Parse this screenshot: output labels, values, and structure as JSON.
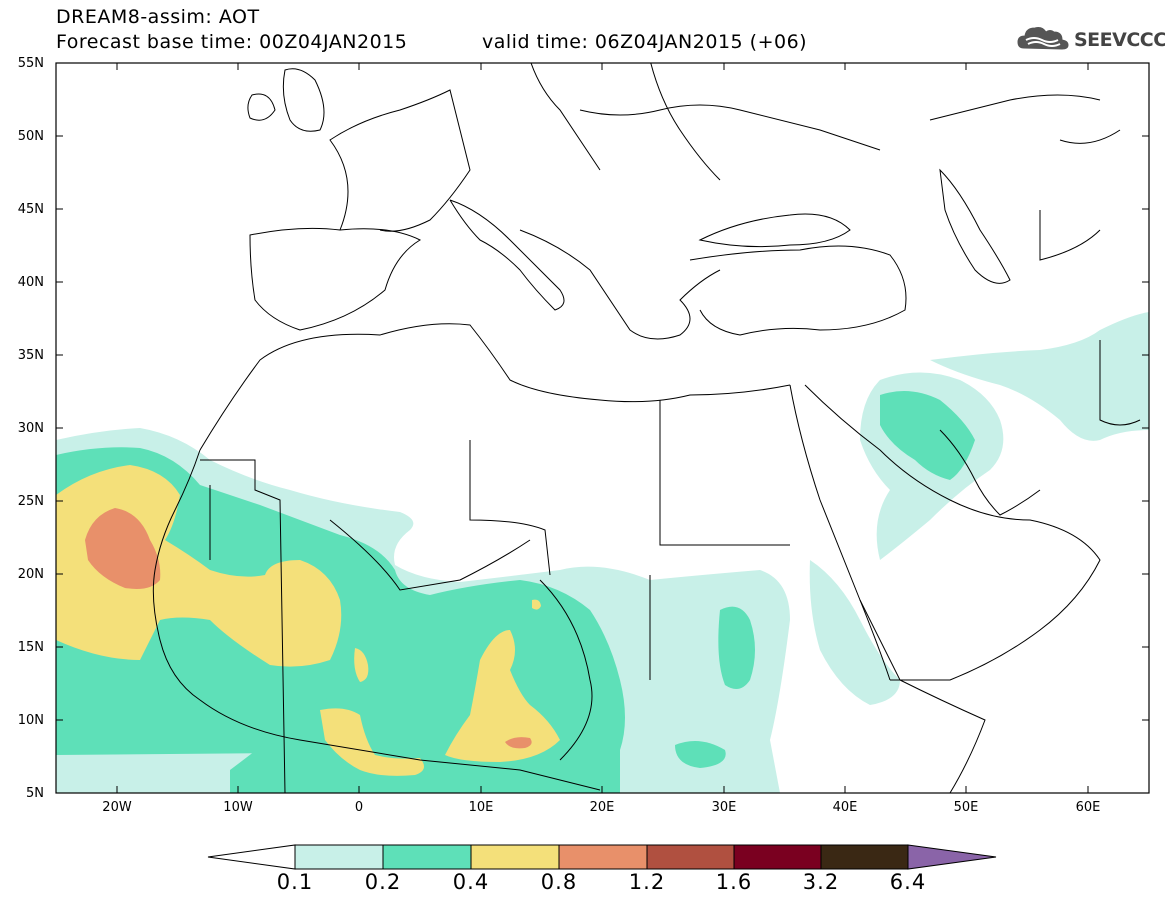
{
  "header": {
    "title": "DREAM8-assim: AOT",
    "base_time": "Forecast base time: 00Z04JAN2015",
    "valid_time": "valid time: 06Z04JAN2015 (+06)"
  },
  "logo": {
    "name": "cloud-logo-icon",
    "text": "SEEVCCC"
  },
  "map": {
    "lat_labels": [
      "55N",
      "50N",
      "45N",
      "40N",
      "35N",
      "30N",
      "25N",
      "20N",
      "15N",
      "10N",
      "5N"
    ],
    "lon_labels": [
      "20W",
      "10W",
      "0",
      "10E",
      "20E",
      "30E",
      "40E",
      "50E",
      "60E"
    ],
    "lat_range": [
      5,
      55
    ],
    "lon_range": [
      -25,
      65
    ]
  },
  "colorbar": {
    "labels": [
      "0.1",
      "0.2",
      "0.4",
      "0.8",
      "1.2",
      "1.6",
      "3.2",
      "6.4"
    ],
    "colors": [
      "#ffffff",
      "#c8f0e8",
      "#5ee0b8",
      "#f4e07a",
      "#e8906a",
      "#b05040",
      "#7a0020",
      "#3a2814",
      "#8a64a8"
    ]
  },
  "palette": {
    "c1": "#c8f0e8",
    "c2": "#5ee0b8",
    "c3": "#f4e07a",
    "c4": "#e8906a",
    "c5": "#b05040"
  }
}
